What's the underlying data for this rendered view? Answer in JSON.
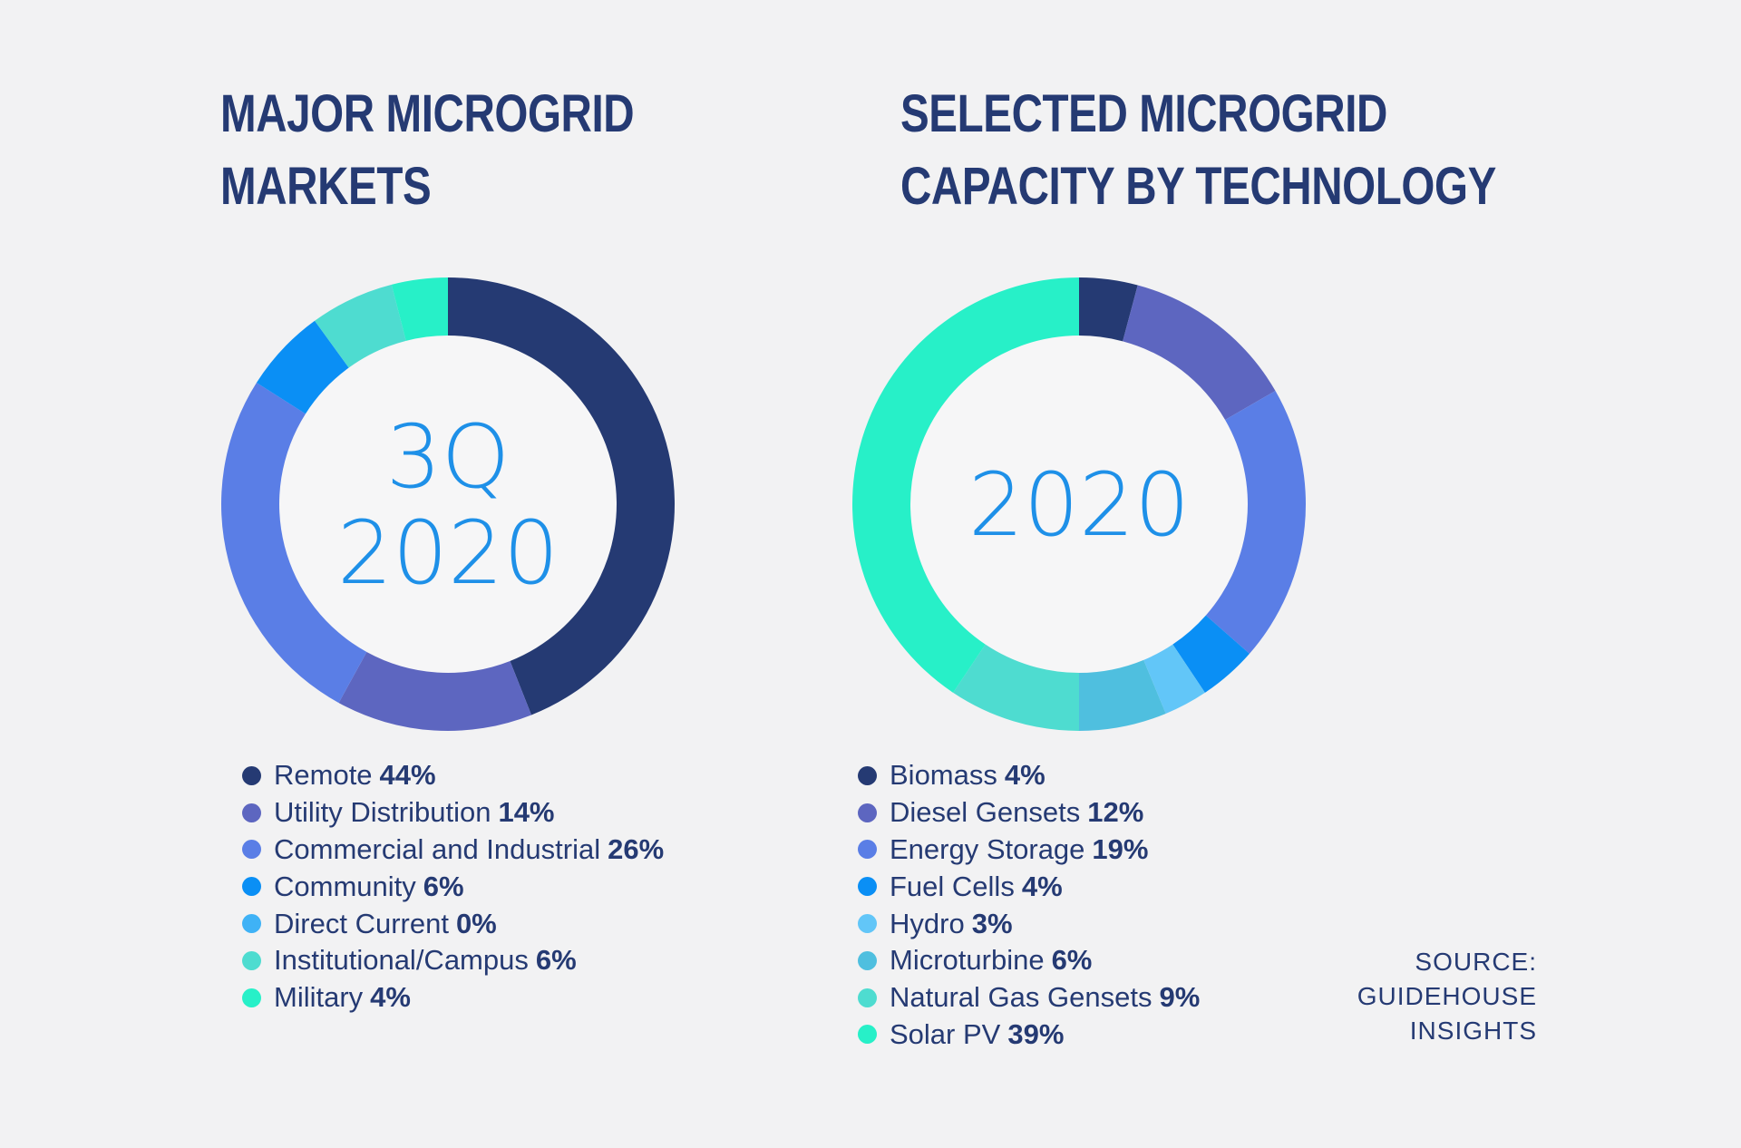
{
  "chart_data": [
    {
      "type": "pie",
      "variant": "donut",
      "title": [
        "MAJOR MICROGRID",
        "MARKETS"
      ],
      "center_label": [
        "3Q",
        "2020"
      ],
      "slices": [
        {
          "label": "Remote",
          "value": 44,
          "value_label": "44%",
          "color": "#253a73"
        },
        {
          "label": "Utility Distribution",
          "value": 14,
          "value_label": "14%",
          "color": "#5d66c0"
        },
        {
          "label": "Commercial and Industrial",
          "value": 26,
          "value_label": "26%",
          "color": "#5a7ee6"
        },
        {
          "label": "Community",
          "value": 6,
          "value_label": "6%",
          "color": "#0a8ff5"
        },
        {
          "label": "Direct Current",
          "value": 0,
          "value_label": "0%",
          "color": "#3fb2f6"
        },
        {
          "label": "Institutional/Campus",
          "value": 6,
          "value_label": "6%",
          "color": "#4edcd0"
        },
        {
          "label": "Military",
          "value": 4,
          "value_label": "4%",
          "color": "#27f0c8"
        }
      ]
    },
    {
      "type": "pie",
      "variant": "donut",
      "title": [
        "SELECTED MICROGRID",
        "CAPACITY BY TECHNOLOGY"
      ],
      "center_label": [
        "2020"
      ],
      "slices": [
        {
          "label": "Biomass",
          "value": 4,
          "value_label": "4%",
          "color": "#253a73"
        },
        {
          "label": "Diesel Gensets",
          "value": 12,
          "value_label": "12%",
          "color": "#5d66c0"
        },
        {
          "label": "Energy Storage",
          "value": 19,
          "value_label": "19%",
          "color": "#5a7ee6"
        },
        {
          "label": "Fuel Cells",
          "value": 4,
          "value_label": "4%",
          "color": "#0a8ff5"
        },
        {
          "label": "Hydro",
          "value": 3,
          "value_label": "3%",
          "color": "#62c6f8"
        },
        {
          "label": "Microturbine",
          "value": 6,
          "value_label": "6%",
          "color": "#4fbfdf"
        },
        {
          "label": "Natural Gas Gensets",
          "value": 9,
          "value_label": "9%",
          "color": "#4edcd0"
        },
        {
          "label": "Solar PV",
          "value": 39,
          "value_label": "39%",
          "color": "#27f0c8"
        }
      ]
    }
  ],
  "source": [
    "SOURCE:",
    "GUIDEHOUSE",
    "INSIGHTS"
  ]
}
